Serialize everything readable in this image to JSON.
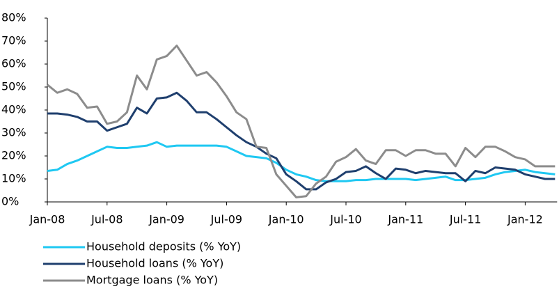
{
  "chart_data": {
    "type": "line",
    "categories": [
      "Jan-08",
      null,
      null,
      null,
      null,
      null,
      "Jul-08",
      null,
      null,
      null,
      null,
      null,
      "Jan-09",
      null,
      null,
      null,
      null,
      null,
      "Jul-09",
      null,
      null,
      null,
      null,
      null,
      "Jan-10",
      null,
      null,
      null,
      null,
      null,
      "Jul-10",
      null,
      null,
      null,
      null,
      null,
      "Jan-11",
      null,
      null,
      null,
      null,
      null,
      "Jul-11",
      null,
      null,
      null,
      null,
      null,
      "Jan-12",
      null,
      null,
      null
    ],
    "series": [
      {
        "name": "Household deposits (% YoY)",
        "color": "#1fc8f2",
        "values": [
          13.5,
          14,
          16.5,
          18,
          20,
          22,
          24,
          23.5,
          23.5,
          24,
          24.5,
          26,
          24,
          24.5,
          24.5,
          24.5,
          24.5,
          24.5,
          24,
          22,
          20,
          19.5,
          19,
          17,
          14,
          12,
          11,
          9.5,
          9,
          9,
          9,
          9.5,
          9.5,
          10,
          10,
          10,
          10,
          9.5,
          10,
          10.5,
          11,
          9.5,
          9.5,
          10,
          10.5,
          12,
          13,
          13.5,
          14,
          13,
          12.5,
          12
        ]
      },
      {
        "name": "Household loans (% YoY)",
        "color": "#1f3f6e",
        "values": [
          38.5,
          38.5,
          38,
          37,
          35,
          35,
          31,
          32.5,
          34,
          41,
          38.5,
          45,
          45.5,
          47.5,
          44,
          39,
          39,
          36,
          32.5,
          29,
          26,
          24,
          21,
          19,
          12,
          9,
          5.5,
          5.5,
          8.5,
          10,
          13,
          13.5,
          15.5,
          12.5,
          10,
          14.5,
          14,
          12.5,
          13.5,
          13,
          12.5,
          12.5,
          9,
          13.5,
          12.5,
          15,
          14.5,
          14,
          12,
          11,
          10,
          10
        ]
      },
      {
        "name": "Mortgage loans (% YoY)",
        "color": "#8c8c8c",
        "values": [
          51,
          47.5,
          49,
          47,
          41,
          41.5,
          34,
          35,
          39,
          55,
          49,
          62,
          63.5,
          68,
          61.5,
          55,
          56.5,
          52,
          46,
          39,
          36,
          24,
          23.5,
          12,
          7,
          2,
          2.5,
          8,
          11,
          17.5,
          19.5,
          23,
          18,
          16.5,
          22.5,
          22.5,
          20,
          22.5,
          22.5,
          21,
          21,
          15.5,
          23.5,
          19.5,
          24,
          24,
          22,
          19.5,
          18.5,
          15.5,
          15.5,
          15.5
        ]
      }
    ],
    "ylim": [
      0,
      80
    ],
    "yticks": [
      {
        "value": 0,
        "label": "0%"
      },
      {
        "value": 10,
        "label": "10%"
      },
      {
        "value": 20,
        "label": "20%"
      },
      {
        "value": 30,
        "label": "30%"
      },
      {
        "value": 40,
        "label": "40%"
      },
      {
        "value": 50,
        "label": "50%"
      },
      {
        "value": 60,
        "label": "60%"
      },
      {
        "value": 70,
        "label": "70%"
      },
      {
        "value": 80,
        "label": "80%"
      }
    ]
  }
}
